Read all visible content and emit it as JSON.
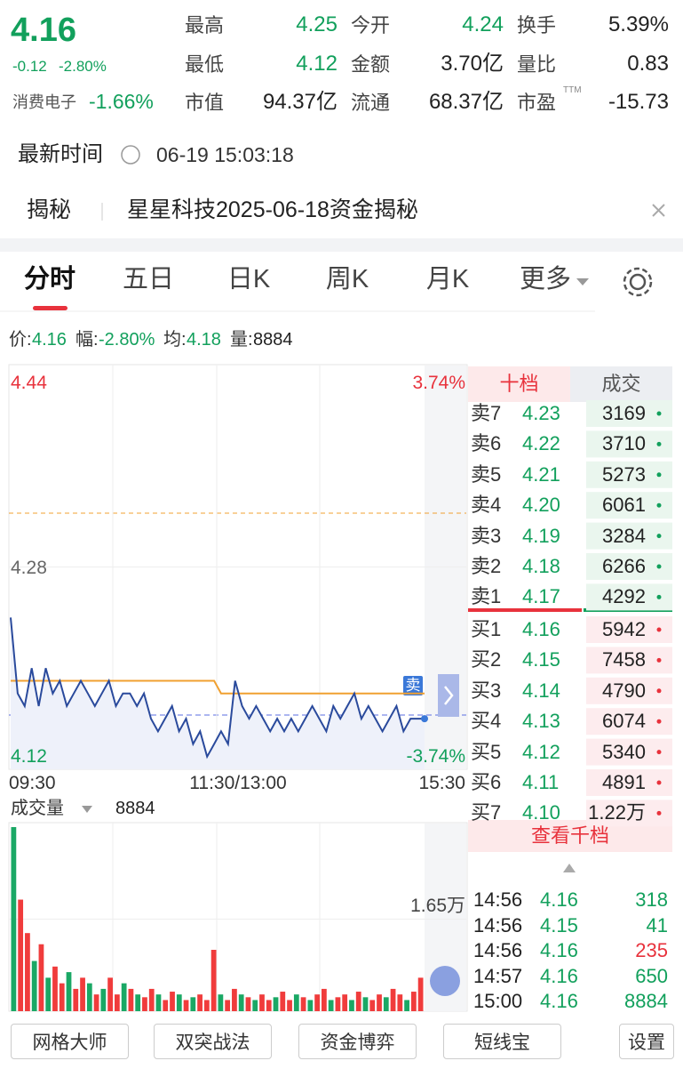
{
  "quote": {
    "price": "4.16",
    "change": "-0.12",
    "change_pct": "-2.80%",
    "sector": "消费电子",
    "sector_pct": "-1.66%",
    "stats": [
      [
        {
          "label": "最高",
          "value": "4.25",
          "color": "#12a05c"
        },
        {
          "label": "今开",
          "value": "4.24",
          "color": "#12a05c"
        },
        {
          "label": "换手",
          "value": "5.39%",
          "color": "#222"
        }
      ],
      [
        {
          "label": "最低",
          "value": "4.12",
          "color": "#12a05c"
        },
        {
          "label": "金额",
          "value": "3.70亿",
          "color": "#222"
        },
        {
          "label": "量比",
          "value": "0.83",
          "color": "#222"
        }
      ],
      [
        {
          "label": "市值",
          "value": "94.37亿",
          "color": "#222"
        },
        {
          "label": "流通",
          "value": "68.37亿",
          "color": "#222"
        },
        {
          "label": "市盈",
          "sup": "TTM",
          "value": "-15.73",
          "color": "#222"
        }
      ]
    ]
  },
  "time": {
    "label": "最新时间",
    "value": "06-19 15:03:18"
  },
  "news": {
    "tag": "揭秘",
    "text": "星星科技2025-06-18资金揭秘"
  },
  "tabs": [
    "分时",
    "五日",
    "日K",
    "周K",
    "月K",
    "更多"
  ],
  "info": [
    {
      "label": "价:",
      "value": "4.16",
      "color": "#12a05c"
    },
    {
      "label": "幅:",
      "value": "-2.80%",
      "color": "#12a05c"
    },
    {
      "label": "均:",
      "value": "4.18",
      "color": "#12a05c"
    },
    {
      "label": "量:",
      "value": "8884",
      "color": "#222"
    }
  ],
  "chart": {
    "type": "line",
    "ylim": [
      4.12,
      4.44
    ],
    "yticks": [
      4.12,
      4.28,
      4.44
    ],
    "pct_labels": [
      "3.74%",
      "-3.74%"
    ],
    "xlabels": [
      "09:30",
      "11:30/13:00",
      "15:30"
    ],
    "color": "#2a4a9c",
    "avg_color": "#f0a030",
    "badge": "卖",
    "price": [
      4.24,
      4.18,
      4.17,
      4.2,
      4.17,
      4.2,
      4.18,
      4.19,
      4.17,
      4.18,
      4.19,
      4.18,
      4.17,
      4.18,
      4.19,
      4.17,
      4.18,
      4.18,
      4.17,
      4.18,
      4.16,
      4.15,
      4.16,
      4.17,
      4.15,
      4.16,
      4.14,
      4.15,
      4.13,
      4.14,
      4.15,
      4.14,
      4.19,
      4.17,
      4.16,
      4.17,
      4.16,
      4.15,
      4.16,
      4.15,
      4.16,
      4.15,
      4.16,
      4.17,
      4.16,
      4.15,
      4.17,
      4.16,
      4.17,
      4.18,
      4.16,
      4.17,
      4.16,
      4.15,
      4.16,
      4.17,
      4.15,
      4.16,
      4.16,
      4.16
    ],
    "avg": [
      4.19,
      4.19,
      4.19,
      4.19,
      4.19,
      4.19,
      4.19,
      4.19,
      4.19,
      4.19,
      4.19,
      4.19,
      4.19,
      4.19,
      4.19,
      4.19,
      4.19,
      4.19,
      4.19,
      4.19,
      4.19,
      4.19,
      4.19,
      4.19,
      4.19,
      4.19,
      4.19,
      4.19,
      4.19,
      4.19,
      4.18,
      4.18,
      4.18,
      4.18,
      4.18,
      4.18,
      4.18,
      4.18,
      4.18,
      4.18,
      4.18,
      4.18,
      4.18,
      4.18,
      4.18,
      4.18,
      4.18,
      4.18,
      4.18,
      4.18,
      4.18,
      4.18,
      4.18,
      4.18,
      4.18,
      4.18,
      4.18,
      4.18,
      4.18,
      4.18
    ]
  },
  "volume": {
    "type": "bar",
    "title": "成交量",
    "value": "8884",
    "ylim": [
      0,
      33000
    ],
    "yticks": [
      {
        "value": 16500,
        "label": "1.65万"
      }
    ],
    "values": [
      33000,
      20000,
      14000,
      9000,
      12000,
      6000,
      8000,
      5000,
      7000,
      4000,
      6000,
      5000,
      3000,
      4000,
      6000,
      3000,
      5000,
      4000,
      3000,
      2500,
      4000,
      3000,
      2000,
      3500,
      3000,
      2000,
      2500,
      3000,
      2000,
      11000,
      3000,
      2000,
      4000,
      3000,
      2500,
      2000,
      3000,
      2000,
      2500,
      3500,
      2000,
      3000,
      2500,
      2000,
      3000,
      4000,
      2000,
      2500,
      3000,
      2000,
      3500,
      2500,
      2000,
      3000,
      2500,
      4000,
      3000,
      2000,
      3500,
      6000
    ],
    "colors": [
      "#1aa865",
      "#f03c3c",
      "#f03c3c",
      "#1aa865",
      "#f03c3c",
      "#1aa865",
      "#f03c3c",
      "#f03c3c",
      "#1aa865",
      "#f03c3c",
      "#f03c3c",
      "#1aa865",
      "#f03c3c",
      "#1aa865",
      "#f03c3c",
      "#f03c3c",
      "#1aa865",
      "#f03c3c",
      "#1aa865",
      "#f03c3c",
      "#f03c3c",
      "#1aa865",
      "#f03c3c",
      "#f03c3c",
      "#1aa865",
      "#f03c3c",
      "#1aa865",
      "#f03c3c",
      "#f03c3c",
      "#f03c3c",
      "#1aa865",
      "#f03c3c",
      "#f03c3c",
      "#1aa865",
      "#f03c3c",
      "#1aa865",
      "#f03c3c",
      "#f03c3c",
      "#1aa865",
      "#f03c3c",
      "#f03c3c",
      "#1aa865",
      "#f03c3c",
      "#1aa865",
      "#f03c3c",
      "#f03c3c",
      "#1aa865",
      "#f03c3c",
      "#f03c3c",
      "#1aa865",
      "#f03c3c",
      "#1aa865",
      "#f03c3c",
      "#f03c3c",
      "#1aa865",
      "#f03c3c",
      "#f03c3c",
      "#1aa865",
      "#f03c3c",
      "#f03c3c"
    ]
  },
  "order_book": {
    "header": [
      "十档",
      "成交"
    ],
    "asks": [
      {
        "label": "卖7",
        "price": "4.23",
        "volume": "3169"
      },
      {
        "label": "卖6",
        "price": "4.22",
        "volume": "3710"
      },
      {
        "label": "卖5",
        "price": "4.21",
        "volume": "5273"
      },
      {
        "label": "卖4",
        "price": "4.20",
        "volume": "6061"
      },
      {
        "label": "卖3",
        "price": "4.19",
        "volume": "3284"
      },
      {
        "label": "卖2",
        "price": "4.18",
        "volume": "6266"
      },
      {
        "label": "卖1",
        "price": "4.17",
        "volume": "4292"
      }
    ],
    "bids": [
      {
        "label": "买1",
        "price": "4.16",
        "volume": "5942"
      },
      {
        "label": "买2",
        "price": "4.15",
        "volume": "7458"
      },
      {
        "label": "买3",
        "price": "4.14",
        "volume": "4790"
      },
      {
        "label": "买4",
        "price": "4.13",
        "volume": "6074"
      },
      {
        "label": "买5",
        "price": "4.12",
        "volume": "5340"
      },
      {
        "label": "买6",
        "price": "4.11",
        "volume": "4891"
      },
      {
        "label": "买7",
        "price": "4.10",
        "volume": "1.22万"
      }
    ],
    "more": "查看千档"
  },
  "trades": [
    {
      "time": "14:56",
      "price": "4.16",
      "volume": "318",
      "color": "#12a05c"
    },
    {
      "time": "14:56",
      "price": "4.15",
      "volume": "41",
      "color": "#12a05c"
    },
    {
      "time": "14:56",
      "price": "4.16",
      "volume": "235",
      "color": "#e8323c"
    },
    {
      "time": "14:57",
      "price": "4.16",
      "volume": "650",
      "color": "#12a05c"
    },
    {
      "time": "15:00",
      "price": "4.16",
      "volume": "8884",
      "color": "#12a05c"
    }
  ],
  "buttons": [
    "网格大师",
    "双突战法",
    "资金博弈",
    "短线宝"
  ],
  "settings": "设置"
}
